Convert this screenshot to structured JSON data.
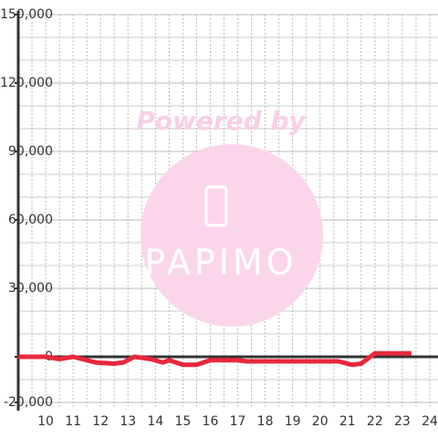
{
  "chart_data": {
    "type": "line",
    "watermark": {
      "top": "Powered by",
      "logo": "PAPIMO"
    },
    "x": [
      9,
      10,
      10.5,
      11,
      11.5,
      11.83,
      12.5,
      12.83,
      13.23,
      13.83,
      14.27,
      14.5,
      15,
      15.5,
      16,
      17,
      17.33,
      20.67,
      21.17,
      21.5,
      22,
      23.33
    ],
    "values": [
      0,
      0,
      -1000,
      0,
      -1500,
      -2500,
      -3000,
      -2500,
      0,
      -1000,
      -2500,
      -1500,
      -3500,
      -3500,
      -1500,
      -1500,
      -2000,
      -2000,
      -3500,
      -3000,
      1500,
      1500
    ],
    "color": "#e8283c",
    "xlim": [
      9,
      24.3
    ],
    "xticks": [
      10,
      11,
      12,
      13,
      14,
      15,
      16,
      17,
      18,
      19,
      20,
      21,
      22,
      23,
      24
    ],
    "xminorticks": [
      9.5,
      10.5,
      11.5,
      12.5,
      13.5,
      14.5,
      15.5,
      16.5,
      17.5,
      18.5,
      19.5,
      20.5,
      21.5,
      22.5,
      23.5
    ],
    "ylim": [
      -22000,
      150000
    ],
    "yticks": [
      {
        "value": -20000,
        "label": "-20,000"
      },
      0,
      {
        "value": 30000,
        "label": "30,000"
      },
      {
        "value": 60000,
        "label": "60,000"
      },
      {
        "value": 90000,
        "label": "90,000"
      },
      {
        "value": 120000,
        "label": "120,000"
      },
      {
        "value": 150000,
        "label": "150,000"
      }
    ],
    "yminorticks": [
      -10000,
      10000,
      20000,
      40000,
      50000,
      70000,
      80000,
      100000,
      110000,
      130000,
      140000
    ],
    "grid": true
  }
}
